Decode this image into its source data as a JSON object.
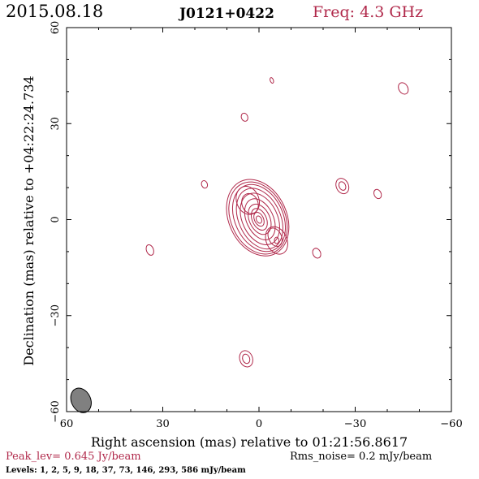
{
  "header": {
    "date": "2015.08.18",
    "source": "J0121+0422",
    "freq": "Freq: 4.3 GHz"
  },
  "colors": {
    "contour": "#b0284a",
    "accent_text": "#b0284a",
    "axis": "#000000",
    "beam_fill": "#808080"
  },
  "chart_data": {
    "type": "contour",
    "xlabel": "Right ascension (mas) relative to 01:21:56.8617",
    "ylabel": "Declination (mas) relative to +04:22:24.734",
    "xlim": [
      60,
      -60
    ],
    "ylim": [
      -60,
      60
    ],
    "xticks": [
      60,
      30,
      0,
      -30,
      -60
    ],
    "yticks": [
      -60,
      -30,
      0,
      30,
      60
    ],
    "xtick_labels": [
      "60",
      "30",
      "0",
      "−30",
      "−60"
    ],
    "ytick_labels": [
      "−60",
      "−30",
      "0",
      "30",
      "60"
    ],
    "peak_label": "Peak_lev=  0.645 Jy/beam",
    "noise_label": "Rms_noise=  0.2 mJy/beam",
    "levels_label": "Levels:   1,   2,   5,   9,  18,  37,  73, 146, 293, 586 mJy/beam",
    "levels_mjy": [
      1,
      2,
      5,
      9,
      18,
      37,
      73,
      146,
      293,
      586
    ],
    "peak_jy_per_beam": 0.645,
    "rms_mjy_per_beam": 0.2,
    "beam": {
      "x": 55.5,
      "y": -56.5,
      "major": 4.0,
      "minor": 3.0,
      "pa_deg": 25
    },
    "core_components": [
      {
        "x": 0.0,
        "y": 0.5,
        "rx": 7.5,
        "ry": 11.0,
        "angle": 25
      },
      {
        "x": -0.2,
        "y": 0.3,
        "rx": 6.5,
        "ry": 10.0,
        "angle": 25
      },
      {
        "x": -0.3,
        "y": 0.2,
        "rx": 5.5,
        "ry": 8.5,
        "angle": 25
      },
      {
        "x": -0.3,
        "y": 0.1,
        "rx": 4.2,
        "ry": 6.8,
        "angle": 25
      },
      {
        "x": -0.2,
        "y": 0.1,
        "rx": 3.2,
        "ry": 5.0,
        "angle": 25
      },
      {
        "x": -0.1,
        "y": 0.1,
        "rx": 2.2,
        "ry": 3.6,
        "angle": 25
      },
      {
        "x": 0.0,
        "y": 0.1,
        "rx": 1.4,
        "ry": 2.3,
        "angle": 25
      },
      {
        "x": 0.0,
        "y": 0.0,
        "rx": 0.8,
        "ry": 1.2,
        "angle": 25
      }
    ],
    "outer_lobes": [
      {
        "x": 3.5,
        "y": 6.0,
        "rx": 3.5,
        "ry": 4.5,
        "angle": 20
      },
      {
        "x": 2.8,
        "y": 5.0,
        "rx": 2.5,
        "ry": 3.2,
        "angle": 20
      },
      {
        "x": -5.5,
        "y": -6.5,
        "rx": 3.2,
        "ry": 4.5,
        "angle": 25
      },
      {
        "x": -5.0,
        "y": -5.5,
        "rx": 2.0,
        "ry": 3.0,
        "angle": 25
      },
      {
        "x": -5.5,
        "y": -6.5,
        "rx": 0.7,
        "ry": 1.0,
        "angle": 0
      }
    ],
    "outer_rings": [
      {
        "x": 0.3,
        "y": 0.5,
        "rx": 8.4,
        "ry": 11.8,
        "angle": 25
      },
      {
        "x": 0.4,
        "y": 0.6,
        "rx": 9.0,
        "ry": 12.5,
        "angle": 25
      }
    ],
    "isolated_components": [
      {
        "x": 34.0,
        "y": -9.5,
        "rx": 1.1,
        "ry": 1.7,
        "angle": 20
      },
      {
        "x": 17.0,
        "y": 11.0,
        "rx": 0.9,
        "ry": 1.2,
        "angle": 20
      },
      {
        "x": 4.5,
        "y": 32.0,
        "rx": 1.0,
        "ry": 1.3,
        "angle": 20
      },
      {
        "x": -4.0,
        "y": 43.5,
        "rx": 0.5,
        "ry": 0.9,
        "angle": 20
      },
      {
        "x": -45.0,
        "y": 41.0,
        "rx": 1.4,
        "ry": 1.9,
        "angle": 30
      },
      {
        "x": -26.0,
        "y": 10.5,
        "rx": 1.9,
        "ry": 2.5,
        "angle": 25
      },
      {
        "x": -26.0,
        "y": 10.5,
        "rx": 1.0,
        "ry": 1.4,
        "angle": 25
      },
      {
        "x": -37.0,
        "y": 8.0,
        "rx": 1.1,
        "ry": 1.5,
        "angle": 25
      },
      {
        "x": -18.0,
        "y": -10.5,
        "rx": 1.2,
        "ry": 1.6,
        "angle": 25
      },
      {
        "x": 4.0,
        "y": -43.5,
        "rx": 2.0,
        "ry": 2.6,
        "angle": 20
      },
      {
        "x": 4.0,
        "y": -43.5,
        "rx": 1.1,
        "ry": 1.5,
        "angle": 20
      }
    ]
  }
}
